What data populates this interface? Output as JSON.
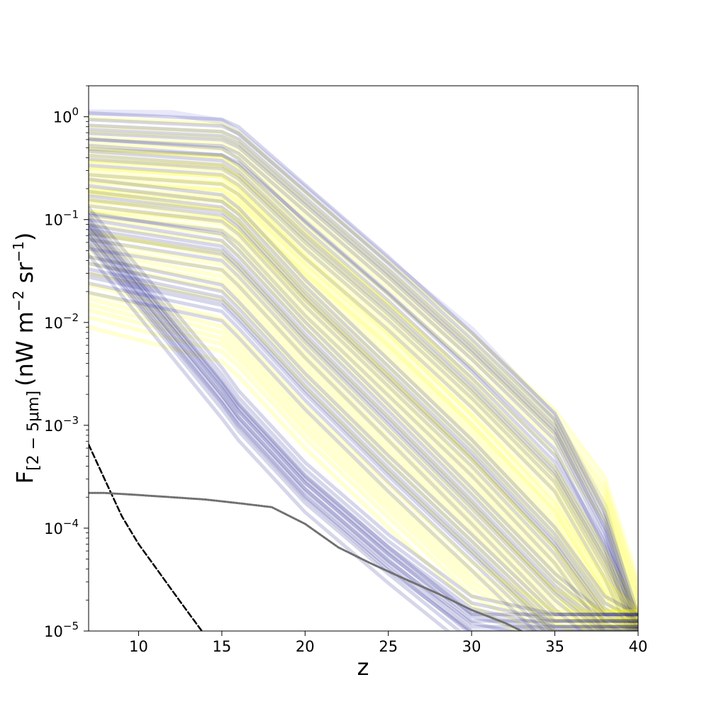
{
  "chart_data": {
    "type": "line",
    "title": "",
    "xlabel": "z",
    "ylabel_main": "F",
    "ylabel_sub": "[2 − 5μm]",
    "ylabel_units": "(nW m",
    "ylabel_units_exp1": "−2",
    "ylabel_units_mid": " sr",
    "ylabel_units_exp2": "−1",
    "ylabel_units_end": ")",
    "xlim": [
      7,
      40
    ],
    "ylim": [
      1e-05,
      2.0
    ],
    "yscale": "log",
    "grid": false,
    "xticks": [
      10,
      15,
      20,
      25,
      30,
      35,
      40
    ],
    "xtick_labels": [
      "10",
      "15",
      "20",
      "25",
      "30",
      "35",
      "40"
    ],
    "yticks": [
      1e-05,
      0.0001,
      0.001,
      0.01,
      0.1,
      1
    ],
    "ytick_labels": [
      {
        "base": "10",
        "exp": "−5"
      },
      {
        "base": "10",
        "exp": "−4"
      },
      {
        "base": "10",
        "exp": "−3"
      },
      {
        "base": "10",
        "exp": "−2"
      },
      {
        "base": "10",
        "exp": "−1"
      },
      {
        "base": "10",
        "exp": "0"
      }
    ],
    "colors": {
      "navy": "#000080",
      "yellow": "#ffff00",
      "lavender": "#e6e6fa",
      "dashed": "#000000",
      "dotted": "#707070"
    },
    "series": [
      {
        "style": "lavender",
        "x": [
          7,
          12,
          15,
          16,
          20,
          25,
          30,
          35,
          38,
          40
        ],
        "y": [
          1.1,
          1.08,
          0.9,
          0.7,
          0.2,
          0.04,
          0.0085,
          0.0012,
          0.00016,
          1e-05
        ]
      },
      {
        "style": "band-yellow",
        "x": [
          7,
          15,
          16,
          20,
          25,
          30,
          35,
          38,
          40
        ],
        "y": [
          0.62,
          0.55,
          0.45,
          0.12,
          0.025,
          0.005,
          0.0009,
          0.0002,
          2e-05
        ]
      },
      {
        "style": "band-navy",
        "x": [
          7,
          15,
          16,
          20,
          25,
          30,
          35,
          38,
          40
        ],
        "y": [
          0.75,
          0.65,
          0.55,
          0.15,
          0.03,
          0.0055,
          0.0009,
          0.0001,
          1e-05
        ]
      },
      {
        "style": "band-navy",
        "x": [
          7,
          15,
          16,
          20,
          25,
          30,
          35,
          38,
          40
        ],
        "y": [
          0.42,
          0.34,
          0.27,
          0.065,
          0.013,
          0.0023,
          0.00035,
          5e-05,
          1e-05
        ]
      },
      {
        "style": "band-yellow",
        "x": [
          7,
          15,
          16,
          20,
          25,
          30,
          35,
          38,
          40
        ],
        "y": [
          0.32,
          0.26,
          0.2,
          0.05,
          0.01,
          0.0017,
          0.00025,
          4e-05,
          1e-05
        ]
      },
      {
        "style": "band-yellow",
        "x": [
          7,
          15,
          16,
          20,
          25,
          30,
          35,
          38,
          40
        ],
        "y": [
          0.2,
          0.17,
          0.13,
          0.028,
          0.005,
          0.0008,
          0.00011,
          2e-05,
          1e-05
        ]
      },
      {
        "style": "band-navy",
        "x": [
          7,
          15,
          16,
          20,
          25,
          30,
          35,
          38,
          40
        ],
        "y": [
          0.17,
          0.12,
          0.09,
          0.018,
          0.003,
          0.0005,
          7e-05,
          1.5e-05,
          1e-05
        ]
      },
      {
        "style": "band-yellow",
        "x": [
          7,
          15,
          16,
          20,
          25,
          30,
          35,
          38,
          40
        ],
        "y": [
          0.12,
          0.08,
          0.06,
          0.012,
          0.002,
          0.0003,
          4e-05,
          1e-05,
          1e-05
        ]
      },
      {
        "style": "band-navy",
        "x": [
          7,
          15,
          16,
          20,
          25,
          30,
          35,
          38,
          40
        ],
        "y": [
          0.08,
          0.05,
          0.035,
          0.007,
          0.0011,
          0.00017,
          2.5e-05,
          1e-05,
          1e-05
        ]
      },
      {
        "style": "band-yellow",
        "x": [
          7,
          15,
          16,
          20,
          25,
          30,
          35,
          38,
          40
        ],
        "y": [
          0.05,
          0.028,
          0.02,
          0.004,
          0.0006,
          0.0001,
          1.6e-05,
          1e-05,
          1e-05
        ]
      },
      {
        "style": "band-navy",
        "x": [
          7,
          15,
          16,
          20,
          25,
          30,
          35,
          38,
          40
        ],
        "y": [
          0.03,
          0.016,
          0.011,
          0.0022,
          0.00035,
          6e-05,
          1e-05,
          1e-05,
          1e-05
        ]
      },
      {
        "style": "band-yellow",
        "x": [
          7,
          15,
          16,
          20,
          25,
          30,
          35,
          38,
          40
        ],
        "y": [
          0.015,
          0.007,
          0.005,
          0.001,
          0.00017,
          3e-05,
          1e-05,
          1e-05,
          1e-05
        ]
      },
      {
        "style": "band-navy",
        "x": [
          7,
          15,
          16,
          20,
          25,
          30,
          35,
          38,
          40
        ],
        "y": [
          0.09,
          0.0025,
          0.0015,
          0.0003,
          6e-05,
          1.5e-05,
          1e-05,
          1e-05,
          1e-05
        ]
      },
      {
        "style": "band-navy",
        "x": [
          7,
          15,
          16,
          20,
          25,
          30,
          35,
          38,
          40
        ],
        "y": [
          0.07,
          0.0018,
          0.0011,
          0.00022,
          4.5e-05,
          1e-05,
          1e-05,
          1e-05,
          1e-05
        ]
      },
      {
        "style": "dashed",
        "x": [
          7,
          8,
          9,
          10,
          11,
          12,
          13,
          13.8
        ],
        "y": [
          0.00065,
          0.00029,
          0.00013,
          7e-05,
          4.2e-05,
          2.5e-05,
          1.5e-05,
          1e-05
        ]
      },
      {
        "style": "dotted",
        "x": [
          7,
          8,
          10,
          12,
          14,
          16,
          18,
          20,
          22,
          24,
          26,
          28,
          30,
          32,
          33
        ],
        "y": [
          0.00022,
          0.00022,
          0.00021,
          0.0002,
          0.00019,
          0.000175,
          0.00016,
          0.00011,
          6.5e-05,
          4.5e-05,
          3.2e-05,
          2.3e-05,
          1.6e-05,
          1.2e-05,
          1e-05
        ]
      }
    ]
  }
}
